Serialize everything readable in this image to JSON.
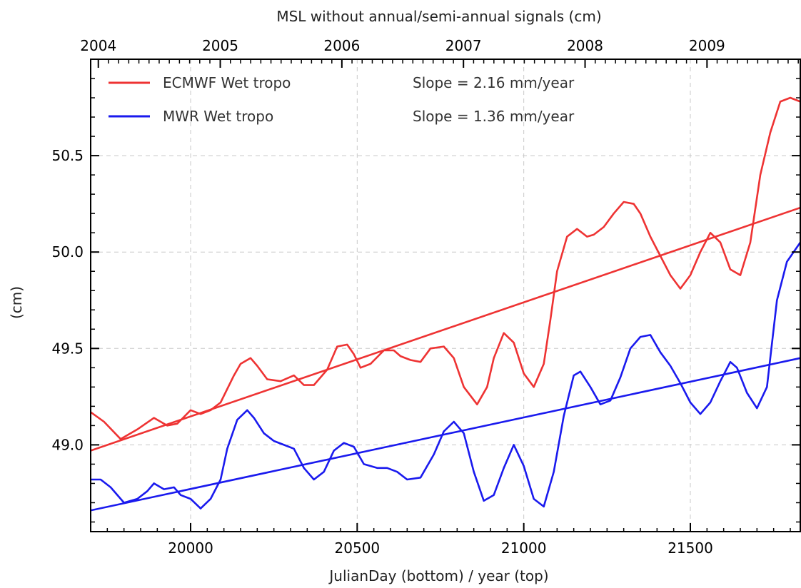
{
  "chart_data": {
    "type": "line",
    "title": "MSL without annual/semi-annual signals (cm)",
    "xlabel": "JulianDay (bottom) / year (top)",
    "ylabel": "(cm)",
    "xlim": [
      19700,
      21830
    ],
    "ylim": [
      48.55,
      51.0
    ],
    "x_ticks": [
      20000,
      20500,
      21000,
      21500
    ],
    "y_ticks": [
      "49.0",
      "49.5",
      "50.0",
      "50.5"
    ],
    "year_ticks": [
      {
        "label": "2004",
        "x": 19723
      },
      {
        "label": "2005",
        "x": 20089
      },
      {
        "label": "2006",
        "x": 20454
      },
      {
        "label": "2007",
        "x": 20819
      },
      {
        "label": "2008",
        "x": 21184
      },
      {
        "label": "2009",
        "x": 21550
      }
    ],
    "grid": true,
    "legend_position": "top-left",
    "series": [
      {
        "name": "ECMWF Wet tropo",
        "color": "#ee3333",
        "slope_label": "Slope = 2.16 mm/year",
        "trend": {
          "x": [
            19700,
            21830
          ],
          "y": [
            48.97,
            50.23
          ]
        },
        "x": [
          19700,
          19740,
          19790,
          19840,
          19890,
          19930,
          19960,
          20000,
          20030,
          20060,
          20090,
          20130,
          20150,
          20180,
          20200,
          20230,
          20270,
          20310,
          20340,
          20370,
          20410,
          20440,
          20470,
          20490,
          20510,
          20540,
          20580,
          20610,
          20630,
          20660,
          20690,
          20720,
          20760,
          20790,
          20820,
          20860,
          20890,
          20910,
          20940,
          20970,
          21000,
          21030,
          21060,
          21080,
          21100,
          21130,
          21160,
          21190,
          21210,
          21240,
          21270,
          21300,
          21330,
          21350,
          21380,
          21410,
          21440,
          21470,
          21500,
          21530,
          21560,
          21590,
          21620,
          21650,
          21680,
          21710,
          21740,
          21770,
          21800,
          21830
        ],
        "y": [
          49.17,
          49.12,
          49.03,
          49.08,
          49.14,
          49.1,
          49.11,
          49.18,
          49.16,
          49.18,
          49.22,
          49.36,
          49.42,
          49.45,
          49.41,
          49.34,
          49.33,
          49.36,
          49.31,
          49.31,
          49.39,
          49.51,
          49.52,
          49.47,
          49.4,
          49.42,
          49.49,
          49.49,
          49.46,
          49.44,
          49.43,
          49.5,
          49.51,
          49.45,
          49.3,
          49.21,
          49.3,
          49.45,
          49.58,
          49.53,
          49.37,
          49.3,
          49.42,
          49.65,
          49.9,
          50.08,
          50.12,
          50.08,
          50.09,
          50.13,
          50.2,
          50.26,
          50.25,
          50.2,
          50.08,
          49.98,
          49.88,
          49.81,
          49.88,
          50.0,
          50.1,
          50.05,
          49.91,
          49.88,
          50.05,
          50.4,
          50.62,
          50.78,
          50.8,
          50.78
        ]
      },
      {
        "name": "MWR Wet tropo",
        "color": "#1a1aee",
        "slope_label": "Slope = 1.36 mm/year",
        "trend": {
          "x": [
            19700,
            21830
          ],
          "y": [
            48.66,
            49.45
          ]
        },
        "x": [
          19700,
          19730,
          19760,
          19800,
          19840,
          19870,
          19890,
          19920,
          19950,
          19970,
          20000,
          20030,
          20060,
          20090,
          20110,
          20140,
          20170,
          20190,
          20220,
          20250,
          20280,
          20310,
          20340,
          20370,
          20400,
          20430,
          20460,
          20490,
          20520,
          20560,
          20590,
          20620,
          20650,
          20690,
          20730,
          20760,
          20790,
          20820,
          20850,
          20880,
          20910,
          20940,
          20970,
          21000,
          21030,
          21060,
          21090,
          21120,
          21150,
          21170,
          21200,
          21230,
          21260,
          21290,
          21320,
          21350,
          21380,
          21410,
          21440,
          21470,
          21500,
          21530,
          21560,
          21590,
          21620,
          21640,
          21670,
          21700,
          21730,
          21760,
          21790,
          21830
        ],
        "y": [
          48.82,
          48.82,
          48.78,
          48.7,
          48.72,
          48.76,
          48.8,
          48.77,
          48.78,
          48.74,
          48.72,
          48.67,
          48.72,
          48.82,
          48.98,
          49.13,
          49.18,
          49.14,
          49.06,
          49.02,
          49.0,
          48.98,
          48.88,
          48.82,
          48.86,
          48.97,
          49.01,
          48.99,
          48.9,
          48.88,
          48.88,
          48.86,
          48.82,
          48.83,
          48.95,
          49.07,
          49.12,
          49.06,
          48.86,
          48.71,
          48.74,
          48.88,
          49.0,
          48.89,
          48.72,
          48.68,
          48.86,
          49.15,
          49.36,
          49.38,
          49.3,
          49.21,
          49.23,
          49.35,
          49.5,
          49.56,
          49.57,
          49.48,
          49.41,
          49.32,
          49.22,
          49.16,
          49.22,
          49.33,
          49.43,
          49.4,
          49.27,
          49.19,
          49.3,
          49.75,
          49.95,
          50.05
        ]
      }
    ]
  }
}
